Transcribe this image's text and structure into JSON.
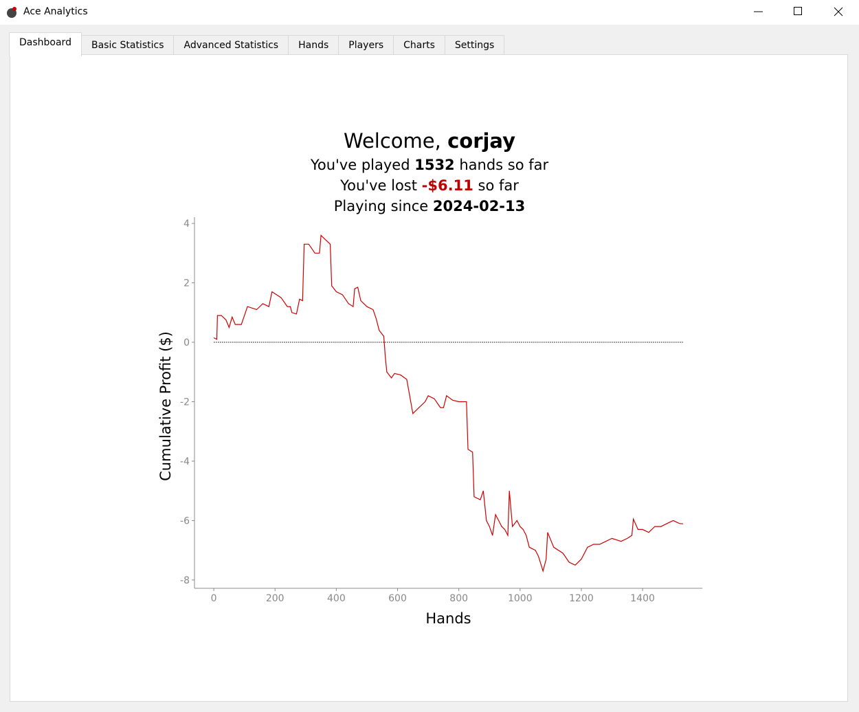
{
  "window": {
    "title": "Ace Analytics"
  },
  "tabs": [
    "Dashboard",
    "Basic Statistics",
    "Advanced Statistics",
    "Hands",
    "Players",
    "Charts",
    "Settings"
  ],
  "welcome": {
    "greeting": "Welcome,",
    "username": "corjay",
    "played_prefix": "You've played",
    "hands": 1532,
    "played_suffix": "hands so far",
    "lost_prefix": "You've lost",
    "amount": "-$6.11",
    "lost_suffix": "so far",
    "since_prefix": "Playing since",
    "since_date": "2024-02-13"
  },
  "chart_data": {
    "type": "line",
    "xlabel": "Hands",
    "ylabel": "Cumulative Profit ($)",
    "color": "#cc0000",
    "x": [
      0,
      10,
      12,
      25,
      40,
      50,
      60,
      70,
      90,
      100,
      110,
      140,
      160,
      180,
      190,
      220,
      240,
      250,
      255,
      270,
      280,
      290,
      295,
      310,
      330,
      345,
      350,
      365,
      380,
      385,
      400,
      420,
      440,
      455,
      460,
      470,
      480,
      490,
      500,
      510,
      520,
      530,
      540,
      555,
      560,
      565,
      580,
      590,
      610,
      630,
      650,
      670,
      690,
      700,
      720,
      740,
      750,
      760,
      780,
      800,
      825,
      830,
      845,
      850,
      870,
      880,
      890,
      900,
      910,
      920,
      930,
      940,
      950,
      960,
      965,
      975,
      990,
      1000,
      1010,
      1020,
      1030,
      1050,
      1060,
      1075,
      1085,
      1090,
      1110,
      1140,
      1160,
      1180,
      1200,
      1220,
      1240,
      1260,
      1280,
      1300,
      1330,
      1350,
      1365,
      1370,
      1385,
      1400,
      1420,
      1440,
      1460,
      1480,
      1500,
      1520,
      1532
    ],
    "values": [
      0.15,
      0.1,
      0.9,
      0.9,
      0.75,
      0.5,
      0.85,
      0.6,
      0.6,
      0.9,
      1.2,
      1.1,
      1.3,
      1.2,
      1.7,
      1.5,
      1.2,
      1.2,
      1.0,
      0.95,
      1.45,
      1.4,
      3.3,
      3.3,
      3.0,
      3.0,
      3.6,
      3.45,
      3.3,
      1.9,
      1.7,
      1.6,
      1.3,
      1.2,
      1.8,
      1.85,
      1.4,
      1.3,
      1.2,
      1.15,
      1.1,
      0.8,
      0.4,
      0.2,
      -0.5,
      -1.0,
      -1.2,
      -1.05,
      -1.1,
      -1.25,
      -2.4,
      -2.2,
      -2.0,
      -1.8,
      -1.9,
      -2.2,
      -2.2,
      -1.8,
      -1.95,
      -2.0,
      -2.0,
      -3.6,
      -3.7,
      -5.2,
      -5.3,
      -5.0,
      -6.0,
      -6.2,
      -6.5,
      -5.8,
      -6.0,
      -6.2,
      -6.3,
      -6.5,
      -5.0,
      -6.2,
      -6.0,
      -6.2,
      -6.3,
      -6.5,
      -6.9,
      -7.0,
      -7.2,
      -7.7,
      -7.3,
      -6.4,
      -6.9,
      -7.1,
      -7.4,
      -7.5,
      -7.3,
      -6.9,
      -6.8,
      -6.8,
      -6.7,
      -6.6,
      -6.7,
      -6.6,
      -6.5,
      -5.95,
      -6.3,
      -6.3,
      -6.4,
      -6.2,
      -6.2,
      -6.1,
      -6.0,
      -6.1,
      -6.11
    ],
    "reference_line": 0,
    "xlim": [
      -63,
      1595
    ],
    "ylim": [
      -8.28,
      4.21
    ],
    "xticks": [
      0,
      200,
      400,
      600,
      800,
      1000,
      1200,
      1400
    ],
    "yticks": [
      -8,
      -6,
      -4,
      -2,
      0,
      2,
      4
    ]
  }
}
